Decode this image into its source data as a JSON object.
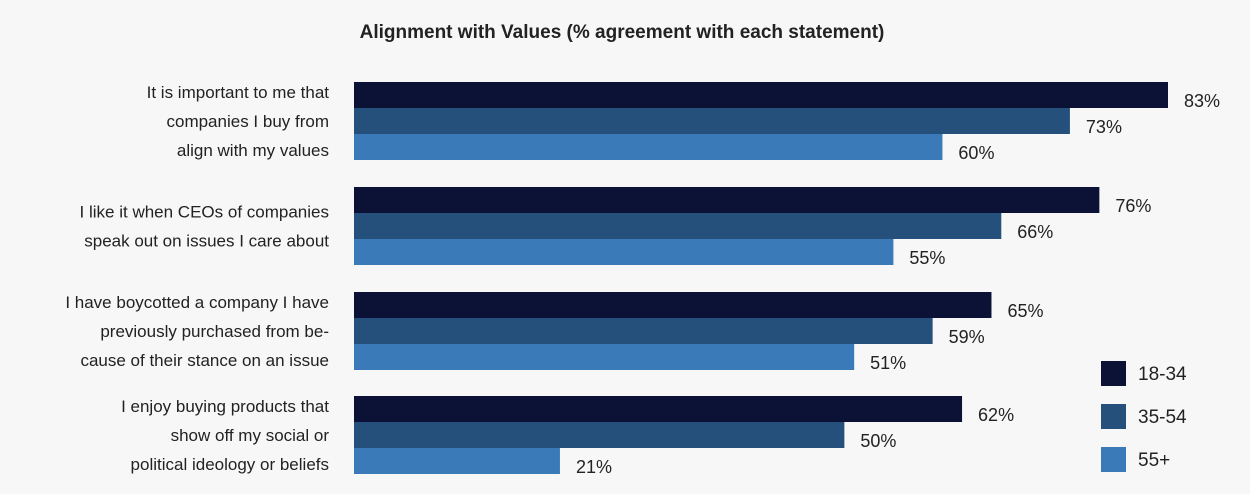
{
  "chart_data": {
    "type": "bar",
    "orientation": "horizontal",
    "title": "Alignment with Values (% agreement with each statement)",
    "xlabel": "",
    "ylabel": "",
    "xlim": [
      0,
      100
    ],
    "grid": false,
    "legend_placement": "bottom-right",
    "value_suffix": "%",
    "categories": [
      [
        "It is important to me that",
        "companies I buy from",
        "align with my values"
      ],
      [
        "I like it when CEOs of companies",
        "speak out on issues I care about"
      ],
      [
        "I have boycotted a company I have",
        "previously purchased from be-",
        "cause of their stance on an issue"
      ],
      [
        "I enjoy buying products that",
        "show off my social or",
        "political ideology or beliefs"
      ]
    ],
    "series": [
      {
        "name": "18-34",
        "color": "#0c1236",
        "values": [
          83,
          76,
          65,
          62
        ]
      },
      {
        "name": "35-54",
        "color": "#26507c",
        "values": [
          73,
          66,
          59,
          50
        ]
      },
      {
        "name": "55+",
        "color": "#3a7ab8",
        "values": [
          60,
          55,
          51,
          21
        ]
      }
    ]
  }
}
